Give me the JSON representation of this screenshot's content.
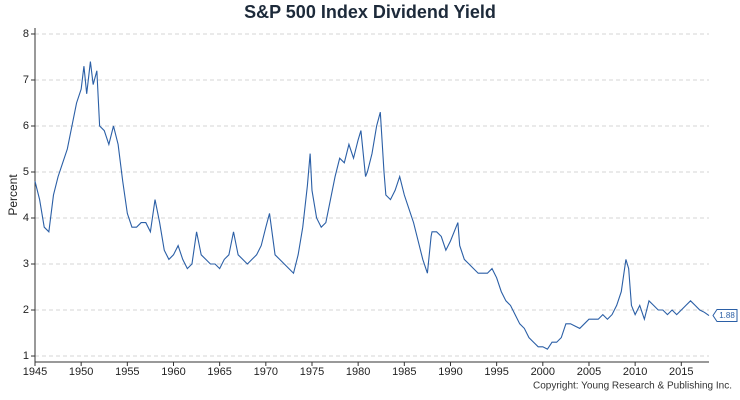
{
  "chart_data": {
    "type": "line",
    "title": "S&P 500 Index Dividend Yield",
    "ylabel": "Percent",
    "annotation": "Copyright: Young Research & Publishing Inc.",
    "xlim": [
      1945,
      2018
    ],
    "xticks": [
      1945,
      1950,
      1955,
      1960,
      1965,
      1970,
      1975,
      1980,
      1985,
      1990,
      1995,
      2000,
      2005,
      2010,
      2015
    ],
    "ylim": [
      0.87,
      8.13
    ],
    "yticks": [
      1,
      2,
      3,
      4,
      5,
      6,
      7,
      8
    ],
    "grid": true,
    "x": [
      1945,
      1945.5,
      1946,
      1946.5,
      1947,
      1947.5,
      1948,
      1948.5,
      1949,
      1949.5,
      1950,
      1950.3,
      1950.6,
      1951,
      1951.3,
      1951.7,
      1952,
      1952.5,
      1953,
      1953.5,
      1954,
      1954.5,
      1955,
      1955.5,
      1956,
      1956.5,
      1957,
      1957.5,
      1958,
      1958.5,
      1959,
      1959.5,
      1960,
      1960.5,
      1961,
      1961.5,
      1962,
      1962.5,
      1963,
      1963.5,
      1964,
      1964.5,
      1965,
      1965.5,
      1966,
      1966.5,
      1967,
      1967.5,
      1968,
      1968.5,
      1969,
      1969.5,
      1970,
      1970.4,
      1970.8,
      1971,
      1971.5,
      1972,
      1972.5,
      1973,
      1973.5,
      1974,
      1974.5,
      1974.8,
      1975,
      1975.5,
      1976,
      1976.5,
      1977,
      1977.5,
      1978,
      1978.5,
      1979,
      1979.5,
      1980,
      1980.3,
      1980.8,
      1981,
      1981.5,
      1982,
      1982.4,
      1982.8,
      1983,
      1983.5,
      1984,
      1984.5,
      1985,
      1985.5,
      1986,
      1986.5,
      1987,
      1987.5,
      1987.9,
      1988,
      1988.5,
      1989,
      1989.5,
      1990,
      1990.8,
      1991,
      1991.5,
      1992,
      1992.5,
      1993,
      1993.5,
      1994,
      1994.5,
      1995,
      1995.5,
      1996,
      1996.5,
      1997,
      1997.5,
      1998,
      1998.5,
      1999,
      1999.5,
      2000,
      2000.5,
      2001,
      2001.5,
      2002,
      2002.5,
      2003,
      2003.5,
      2004,
      2004.5,
      2005,
      2005.5,
      2006,
      2006.5,
      2007,
      2007.5,
      2008,
      2008.5,
      2009,
      2009.3,
      2009.6,
      2010,
      2010.5,
      2011,
      2011.5,
      2012,
      2012.5,
      2013,
      2013.5,
      2014,
      2014.5,
      2015,
      2015.5,
      2016,
      2016.5,
      2017,
      2017.5,
      2018
    ],
    "series": [
      {
        "name": "Dividend Yield",
        "color": "#2b5fa6",
        "values": [
          4.8,
          4.4,
          3.8,
          3.7,
          4.5,
          4.9,
          5.2,
          5.5,
          6.0,
          6.5,
          6.8,
          7.3,
          6.7,
          7.4,
          6.9,
          7.2,
          6.0,
          5.9,
          5.6,
          6.0,
          5.6,
          4.8,
          4.1,
          3.8,
          3.8,
          3.9,
          3.9,
          3.7,
          4.4,
          3.9,
          3.3,
          3.1,
          3.2,
          3.4,
          3.1,
          2.9,
          3.0,
          3.7,
          3.2,
          3.1,
          3.0,
          3.0,
          2.9,
          3.1,
          3.2,
          3.7,
          3.2,
          3.1,
          3.0,
          3.1,
          3.2,
          3.4,
          3.8,
          4.1,
          3.5,
          3.2,
          3.1,
          3.0,
          2.9,
          2.8,
          3.2,
          3.8,
          4.7,
          5.4,
          4.6,
          4.0,
          3.8,
          3.9,
          4.4,
          4.9,
          5.3,
          5.2,
          5.6,
          5.3,
          5.7,
          5.9,
          4.9,
          5.0,
          5.4,
          6.0,
          6.3,
          5.0,
          4.5,
          4.4,
          4.6,
          4.9,
          4.5,
          4.2,
          3.9,
          3.5,
          3.1,
          2.8,
          3.6,
          3.7,
          3.7,
          3.6,
          3.3,
          3.5,
          3.9,
          3.4,
          3.1,
          3.0,
          2.9,
          2.8,
          2.8,
          2.8,
          2.9,
          2.7,
          2.4,
          2.2,
          2.1,
          1.9,
          1.7,
          1.6,
          1.4,
          1.3,
          1.2,
          1.2,
          1.15,
          1.3,
          1.3,
          1.4,
          1.7,
          1.7,
          1.65,
          1.6,
          1.7,
          1.8,
          1.8,
          1.8,
          1.9,
          1.8,
          1.9,
          2.1,
          2.4,
          3.1,
          2.9,
          2.1,
          1.9,
          2.1,
          1.8,
          2.2,
          2.1,
          2.0,
          2.0,
          1.9,
          2.0,
          1.9,
          2.0,
          2.1,
          2.2,
          2.1,
          2.0,
          1.95,
          1.88
        ]
      }
    ]
  }
}
